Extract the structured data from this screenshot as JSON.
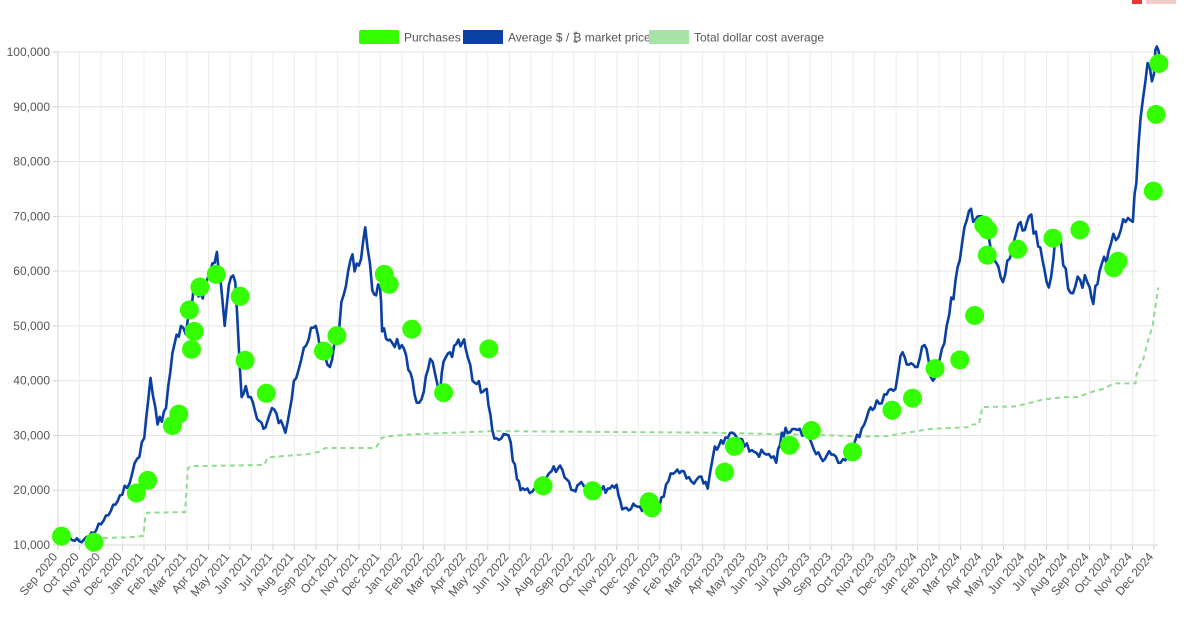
{
  "chart_data": {
    "type": "line",
    "title": "",
    "xlabel": "",
    "ylabel": "",
    "ylim": [
      10000,
      100000
    ],
    "yticks": [
      "10,000",
      "20,000",
      "30,000",
      "40,000",
      "50,000",
      "60,000",
      "70,000",
      "80,000",
      "90,000",
      "100,000"
    ],
    "xticks": [
      "Sep 2020",
      "Oct 2020",
      "Nov 2020",
      "Dec 2020",
      "Jan 2021",
      "Feb 2021",
      "Mar 2021",
      "Apr 2021",
      "May 2021",
      "Jun 2021",
      "Jul 2021",
      "Aug 2021",
      "Sep 2021",
      "Oct 2021",
      "Nov 2021",
      "Dec 2021",
      "Jan 2022",
      "Feb 2022",
      "Mar 2022",
      "Apr 2022",
      "May 2022",
      "Jun 2022",
      "Jul 2022",
      "Aug 2022",
      "Sep 2022",
      "Oct 2022",
      "Nov 2022",
      "Dec 2022",
      "Jan 2023",
      "Feb 2023",
      "Mar 2023",
      "Apr 2023",
      "May 2023",
      "Jun 2023",
      "Jul 2023",
      "Aug 2023",
      "Sep 2023",
      "Oct 2023",
      "Nov 2023",
      "Dec 2023",
      "Jan 2024",
      "Feb 2024",
      "Mar 2024",
      "Apr 2024",
      "May 2024",
      "Jun 2024",
      "Jul 2024",
      "Aug 2024",
      "Sep 2024",
      "Oct 2024",
      "Nov 2024",
      "Dec 2024"
    ],
    "grid": true,
    "legend_position": "top",
    "legend": [
      "Purchases",
      "Average $ / ₿ market price",
      "Total dollar cost average"
    ],
    "colors": {
      "purchases": "#33ff00",
      "market_price": "#0a3fa3",
      "dca": "#8fdb8f"
    },
    "series": [
      {
        "name": "Average $ / ₿ market price",
        "x": [
          "2020-09-01",
          "2020-09-15",
          "2020-10-01",
          "2020-10-15",
          "2020-11-01",
          "2020-11-15",
          "2020-12-01",
          "2020-12-15",
          "2021-01-01",
          "2021-01-10",
          "2021-01-20",
          "2021-02-01",
          "2021-02-10",
          "2021-02-22",
          "2021-03-01",
          "2021-03-13",
          "2021-03-25",
          "2021-04-01",
          "2021-04-14",
          "2021-04-25",
          "2021-05-01",
          "2021-05-10",
          "2021-05-19",
          "2021-05-25",
          "2021-06-01",
          "2021-06-10",
          "2021-06-22",
          "2021-07-01",
          "2021-07-20",
          "2021-08-01",
          "2021-08-15",
          "2021-09-01",
          "2021-09-07",
          "2021-09-21",
          "2021-10-01",
          "2021-10-20",
          "2021-11-01",
          "2021-11-10",
          "2021-11-20",
          "2021-12-01",
          "2021-12-04",
          "2021-12-15",
          "2022-01-01",
          "2022-01-10",
          "2022-01-22",
          "2022-02-01",
          "2022-02-10",
          "2022-02-24",
          "2022-03-01",
          "2022-03-28",
          "2022-04-01",
          "2022-04-11",
          "2022-04-26",
          "2022-05-01",
          "2022-05-09",
          "2022-05-15",
          "2022-06-01",
          "2022-06-13",
          "2022-06-18",
          "2022-07-01",
          "2022-07-15",
          "2022-08-01",
          "2022-08-13",
          "2022-09-01",
          "2022-09-12",
          "2022-10-01",
          "2022-11-01",
          "2022-11-09",
          "2022-11-15",
          "2022-12-01",
          "2022-12-31",
          "2023-01-10",
          "2023-01-20",
          "2023-02-01",
          "2023-02-15",
          "2023-03-01",
          "2023-03-10",
          "2023-03-20",
          "2023-04-01",
          "2023-04-14",
          "2023-05-01",
          "2023-05-15",
          "2023-06-01",
          "2023-06-15",
          "2023-06-23",
          "2023-07-01",
          "2023-07-15",
          "2023-08-01",
          "2023-08-17",
          "2023-09-01",
          "2023-09-11",
          "2023-10-01",
          "2023-10-24",
          "2023-11-01",
          "2023-11-15",
          "2023-12-01",
          "2023-12-08",
          "2024-01-01",
          "2024-01-11",
          "2024-01-23",
          "2024-02-01",
          "2024-02-15",
          "2024-03-01",
          "2024-03-14",
          "2024-04-01",
          "2024-04-15",
          "2024-05-01",
          "2024-05-20",
          "2024-06-01",
          "2024-06-07",
          "2024-06-20",
          "2024-07-05",
          "2024-07-15",
          "2024-07-29",
          "2024-08-05",
          "2024-08-15",
          "2024-09-01",
          "2024-09-06",
          "2024-09-15",
          "2024-10-01",
          "2024-10-15",
          "2024-11-01",
          "2024-11-06",
          "2024-11-12",
          "2024-11-22",
          "2024-12-01",
          "2024-12-05",
          "2024-12-10"
        ],
        "values": [
          11600,
          10900,
          10700,
          11600,
          13800,
          16300,
          19200,
          23000,
          29500,
          40500,
          32000,
          35000,
          45000,
          50000,
          48500,
          58000,
          55000,
          58700,
          63500,
          50000,
          57500,
          58000,
          37000,
          39000,
          37000,
          33000,
          31500,
          35000,
          30500,
          40000,
          46000,
          50000,
          46000,
          42500,
          48500,
          62000,
          61000,
          68000,
          56500,
          57000,
          49000,
          47500,
          46500,
          42000,
          36000,
          38000,
          44000,
          37500,
          43500,
          47000,
          46000,
          40000,
          38000,
          38500,
          31000,
          29500,
          30000,
          22000,
          20000,
          19500,
          21000,
          23500,
          24500,
          20000,
          21500,
          19500,
          21000,
          16500,
          16800,
          17000,
          16500,
          21000,
          23000,
          23500,
          21600,
          22500,
          20300,
          28000,
          28500,
          30500,
          28000,
          27000,
          26500,
          25000,
          30500,
          30500,
          31000,
          29500,
          26000,
          26500,
          25000,
          27500,
          34500,
          35000,
          37500,
          38500,
          44500,
          42500,
          46500,
          40000,
          43500,
          52000,
          62000,
          71000,
          70000,
          63000,
          58000,
          67000,
          67500,
          70000,
          64500,
          57000,
          67000,
          60500,
          56000,
          59000,
          57000,
          54000,
          60000,
          65000,
          67500,
          69000,
          76000,
          88000,
          98000,
          96000,
          101000,
          98000
        ]
      },
      {
        "name": "Total dollar cost average",
        "x": [
          "2020-09-01",
          "2020-10-01",
          "2020-10-15",
          "2020-12-10",
          "2020-12-20",
          "2020-12-31",
          "2021-01-03",
          "2021-01-06",
          "2021-02-28",
          "2021-03-04",
          "2021-03-08",
          "2021-06-20",
          "2021-06-25",
          "2021-08-20",
          "2021-09-05",
          "2021-09-15",
          "2021-11-25",
          "2021-12-03",
          "2021-12-09",
          "2022-01-15",
          "2022-04-25",
          "2022-05-05",
          "2023-03-22",
          "2023-09-01",
          "2023-10-20",
          "2023-11-20",
          "2023-12-12",
          "2024-01-01",
          "2024-01-20",
          "2024-03-12",
          "2024-03-15",
          "2024-03-28",
          "2024-04-02",
          "2024-05-20",
          "2024-06-25",
          "2024-07-25",
          "2024-08-15",
          "2024-09-05",
          "2024-09-20",
          "2024-10-05",
          "2024-11-05",
          "2024-11-06",
          "2024-11-12",
          "2024-11-15",
          "2024-11-22",
          "2024-11-29",
          "2024-12-03",
          "2024-12-07"
        ],
        "values": [
          11600,
          11100,
          11200,
          11400,
          11500,
          11700,
          15700,
          15900,
          16000,
          24000,
          24400,
          24600,
          26000,
          26600,
          27000,
          27700,
          27700,
          29500,
          29800,
          30200,
          30700,
          30800,
          30500,
          30000,
          29800,
          29900,
          30400,
          30800,
          31200,
          31500,
          32000,
          32000,
          35200,
          35300,
          36500,
          37000,
          37000,
          38000,
          38500,
          39500,
          39500,
          41000,
          43000,
          43500,
          47000,
          50000,
          53500,
          57000
        ]
      }
    ],
    "purchases": [
      {
        "x": "2020-09-06",
        "y": 11600
      },
      {
        "x": "2020-10-22",
        "y": 10500
      },
      {
        "x": "2020-12-21",
        "y": 19500
      },
      {
        "x": "2021-01-06",
        "y": 21800
      },
      {
        "x": "2021-02-10",
        "y": 31800
      },
      {
        "x": "2021-02-19",
        "y": 33900
      },
      {
        "x": "2021-03-06",
        "y": 52900
      },
      {
        "x": "2021-03-09",
        "y": 45700
      },
      {
        "x": "2021-03-13",
        "y": 49000
      },
      {
        "x": "2021-03-21",
        "y": 57100
      },
      {
        "x": "2021-04-13",
        "y": 59400
      },
      {
        "x": "2021-05-17",
        "y": 55400
      },
      {
        "x": "2021-05-24",
        "y": 43700
      },
      {
        "x": "2021-06-23",
        "y": 37700
      },
      {
        "x": "2021-09-12",
        "y": 45400
      },
      {
        "x": "2021-10-01",
        "y": 48200
      },
      {
        "x": "2021-12-07",
        "y": 59400
      },
      {
        "x": "2021-12-14",
        "y": 57600
      },
      {
        "x": "2022-01-15",
        "y": 49400
      },
      {
        "x": "2022-03-01",
        "y": 37800
      },
      {
        "x": "2022-05-04",
        "y": 45800
      },
      {
        "x": "2022-07-20",
        "y": 20800
      },
      {
        "x": "2022-09-28",
        "y": 19900
      },
      {
        "x": "2022-12-17",
        "y": 17900
      },
      {
        "x": "2022-12-21",
        "y": 16800
      },
      {
        "x": "2023-04-03",
        "y": 23300
      },
      {
        "x": "2023-04-17",
        "y": 28000
      },
      {
        "x": "2023-07-04",
        "y": 28200
      },
      {
        "x": "2023-08-04",
        "y": 30900
      },
      {
        "x": "2023-10-01",
        "y": 27000
      },
      {
        "x": "2023-11-26",
        "y": 34600
      },
      {
        "x": "2023-12-25",
        "y": 36800
      },
      {
        "x": "2024-01-26",
        "y": 42200
      },
      {
        "x": "2024-03-01",
        "y": 43800
      },
      {
        "x": "2024-03-22",
        "y": 51900
      },
      {
        "x": "2024-04-04",
        "y": 68400
      },
      {
        "x": "2024-04-09",
        "y": 62900
      },
      {
        "x": "2024-04-10",
        "y": 67500
      },
      {
        "x": "2024-05-22",
        "y": 64000
      },
      {
        "x": "2024-07-11",
        "y": 66000
      },
      {
        "x": "2024-08-18",
        "y": 67500
      },
      {
        "x": "2024-10-05",
        "y": 60600
      },
      {
        "x": "2024-10-11",
        "y": 61800
      },
      {
        "x": "2024-11-30",
        "y": 74600
      },
      {
        "x": "2024-12-04",
        "y": 88600
      },
      {
        "x": "2024-12-08",
        "y": 97900
      }
    ]
  }
}
